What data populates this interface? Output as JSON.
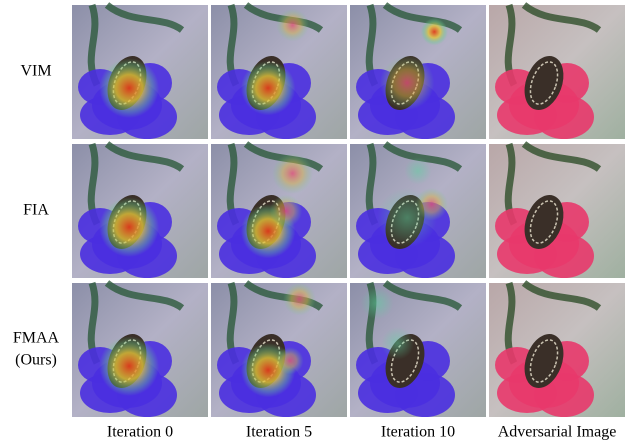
{
  "rows": [
    [
      "VIM"
    ],
    [
      "FIA"
    ],
    [
      "FMAA",
      "(Ours)"
    ]
  ],
  "columns": [
    "Iteration 0",
    "Iteration 5",
    "Iteration 10",
    "Adversarial Image"
  ]
}
